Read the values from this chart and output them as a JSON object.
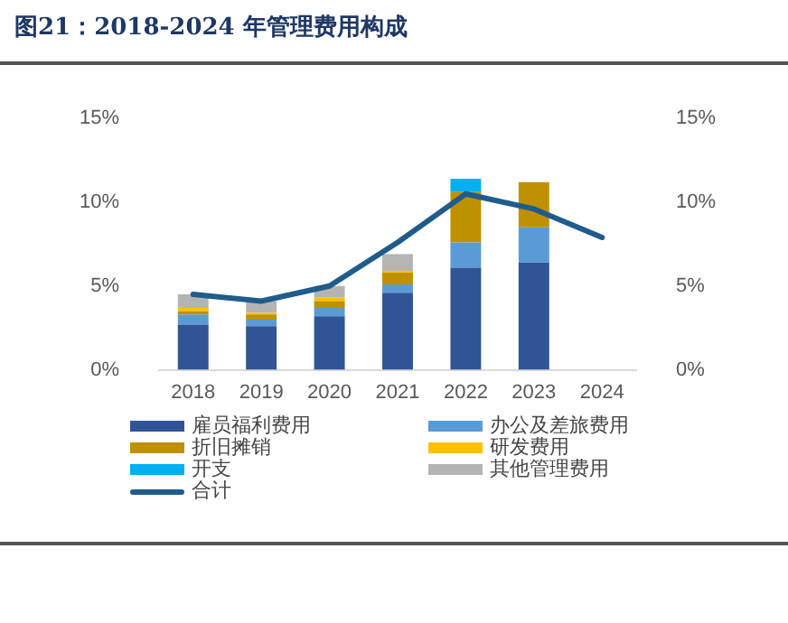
{
  "chart_data": {
    "type": "bar",
    "stacked": true,
    "title": "图21：2018-2024 年管理费用构成",
    "categories": [
      "2018",
      "2019",
      "2020",
      "2021",
      "2022",
      "2023",
      "2024"
    ],
    "series": [
      {
        "name": "雇员福利费用",
        "color": "#2f5597",
        "values": [
          2.7,
          2.6,
          3.2,
          4.6,
          6.1,
          6.4,
          null
        ]
      },
      {
        "name": "办公及差旅费用",
        "color": "#5b9bd5",
        "values": [
          0.6,
          0.4,
          0.5,
          0.5,
          1.5,
          2.1,
          null
        ]
      },
      {
        "name": "折旧摊销",
        "color": "#bf9000",
        "values": [
          0.2,
          0.3,
          0.4,
          0.7,
          3.0,
          2.7,
          null
        ]
      },
      {
        "name": "研发费用",
        "color": "#ffc000",
        "values": [
          0.2,
          0.1,
          0.2,
          0.1,
          null,
          null,
          null
        ]
      },
      {
        "name": "开支",
        "color": "#00b0f0",
        "values": [
          null,
          null,
          null,
          null,
          0.8,
          null,
          null
        ]
      },
      {
        "name": "其他管理费用",
        "color": "#b4b4b4",
        "values": [
          0.8,
          0.7,
          0.7,
          1.0,
          null,
          null,
          null
        ]
      },
      {
        "name": "合计",
        "type": "line",
        "color": "#1f5c8b",
        "values": [
          4.5,
          4.1,
          5.0,
          7.6,
          10.5,
          9.6,
          7.9
        ]
      }
    ],
    "ylim": [
      0,
      15
    ],
    "yticks": [
      {
        "value": 0,
        "label": "0%"
      },
      {
        "value": 5,
        "label": "5%"
      },
      {
        "value": 10,
        "label": "10%"
      },
      {
        "value": 15,
        "label": "15%"
      }
    ],
    "y2lim": [
      0,
      15
    ],
    "y2ticks": [
      {
        "value": 0,
        "label": "0%"
      },
      {
        "value": 5,
        "label": "5%"
      },
      {
        "value": 10,
        "label": "10%"
      },
      {
        "value": 15,
        "label": "15%"
      }
    ],
    "grid": false,
    "legend": "bottom",
    "marker": "none"
  }
}
